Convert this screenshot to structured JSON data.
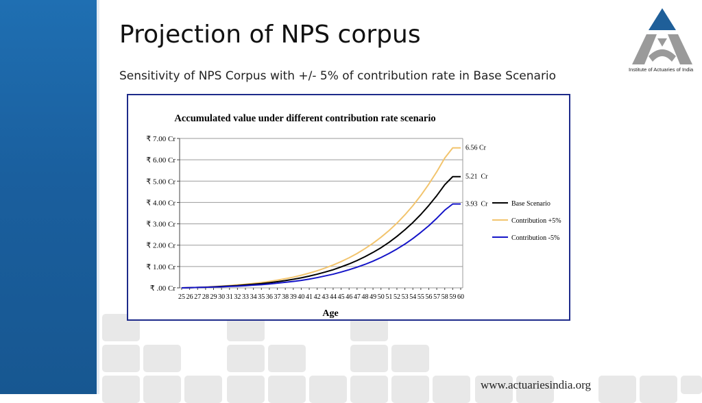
{
  "slide": {
    "title": "Projection of NPS corpus",
    "subtitle": "Sensitivity of NPS Corpus with +/- 5% of contribution rate in Base Scenario",
    "logo_caption": "Institute of Actuaries of India",
    "footer_url": "www.actuariesindia.org"
  },
  "colors": {
    "sidebar": "#1a63a6",
    "frame": "#1d2a8a",
    "base": "#000000",
    "plus5": "#f2c46d",
    "minus5": "#1414c8",
    "logo_blue": "#1f5f99",
    "logo_grey": "#9a9a9a"
  },
  "chart_data": {
    "type": "line",
    "title": "Accumulated value under different contribution rate scenario",
    "xlabel": "Age",
    "ylabel": "",
    "x": [
      25,
      26,
      27,
      28,
      29,
      30,
      31,
      32,
      33,
      34,
      35,
      36,
      37,
      38,
      39,
      40,
      41,
      42,
      43,
      44,
      45,
      46,
      47,
      48,
      49,
      50,
      51,
      52,
      53,
      54,
      55,
      56,
      57,
      58,
      59,
      60
    ],
    "ylim": [
      0,
      7
    ],
    "y_ticks": [
      {
        "value": 0,
        "label": "₹ .00 Cr"
      },
      {
        "value": 1,
        "label": "₹ 1.00 Cr"
      },
      {
        "value": 2,
        "label": "₹ 2.00 Cr"
      },
      {
        "value": 3,
        "label": "₹ 3.00 Cr"
      },
      {
        "value": 4,
        "label": "₹ 4.00 Cr"
      },
      {
        "value": 5,
        "label": "₹ 5.00 Cr"
      },
      {
        "value": 6,
        "label": "₹ 6.00 Cr"
      },
      {
        "value": 7,
        "label": "₹ 7.00 Cr"
      }
    ],
    "grid": true,
    "legend_position": "right",
    "series": [
      {
        "name": "Base Scenario",
        "color": "#000000",
        "end_label": "5.21  Cr",
        "values": [
          0.0,
          0.01,
          0.02,
          0.03,
          0.05,
          0.07,
          0.09,
          0.11,
          0.14,
          0.17,
          0.2,
          0.24,
          0.29,
          0.34,
          0.4,
          0.47,
          0.55,
          0.64,
          0.74,
          0.85,
          0.98,
          1.12,
          1.28,
          1.46,
          1.66,
          1.88,
          2.13,
          2.41,
          2.72,
          3.06,
          3.44,
          3.86,
          4.32,
          4.83,
          5.21,
          5.21
        ]
      },
      {
        "name": "Contribution +5%",
        "color": "#f2c46d",
        "end_label": "6.56 Cr",
        "values": [
          0.0,
          0.01,
          0.02,
          0.04,
          0.06,
          0.08,
          0.11,
          0.14,
          0.17,
          0.21,
          0.25,
          0.3,
          0.36,
          0.43,
          0.5,
          0.59,
          0.69,
          0.8,
          0.93,
          1.07,
          1.23,
          1.41,
          1.61,
          1.84,
          2.09,
          2.37,
          2.68,
          3.03,
          3.42,
          3.85,
          4.33,
          4.86,
          5.44,
          6.08,
          6.56,
          6.56
        ]
      },
      {
        "name": "Contribution -5%",
        "color": "#1414c8",
        "end_label": "3.93  Cr",
        "values": [
          0.0,
          0.01,
          0.02,
          0.03,
          0.04,
          0.05,
          0.07,
          0.08,
          0.1,
          0.13,
          0.15,
          0.18,
          0.22,
          0.26,
          0.3,
          0.35,
          0.41,
          0.48,
          0.56,
          0.64,
          0.74,
          0.85,
          0.97,
          1.1,
          1.25,
          1.42,
          1.61,
          1.82,
          2.05,
          2.31,
          2.6,
          2.91,
          3.26,
          3.64,
          3.93,
          3.93
        ]
      }
    ]
  }
}
